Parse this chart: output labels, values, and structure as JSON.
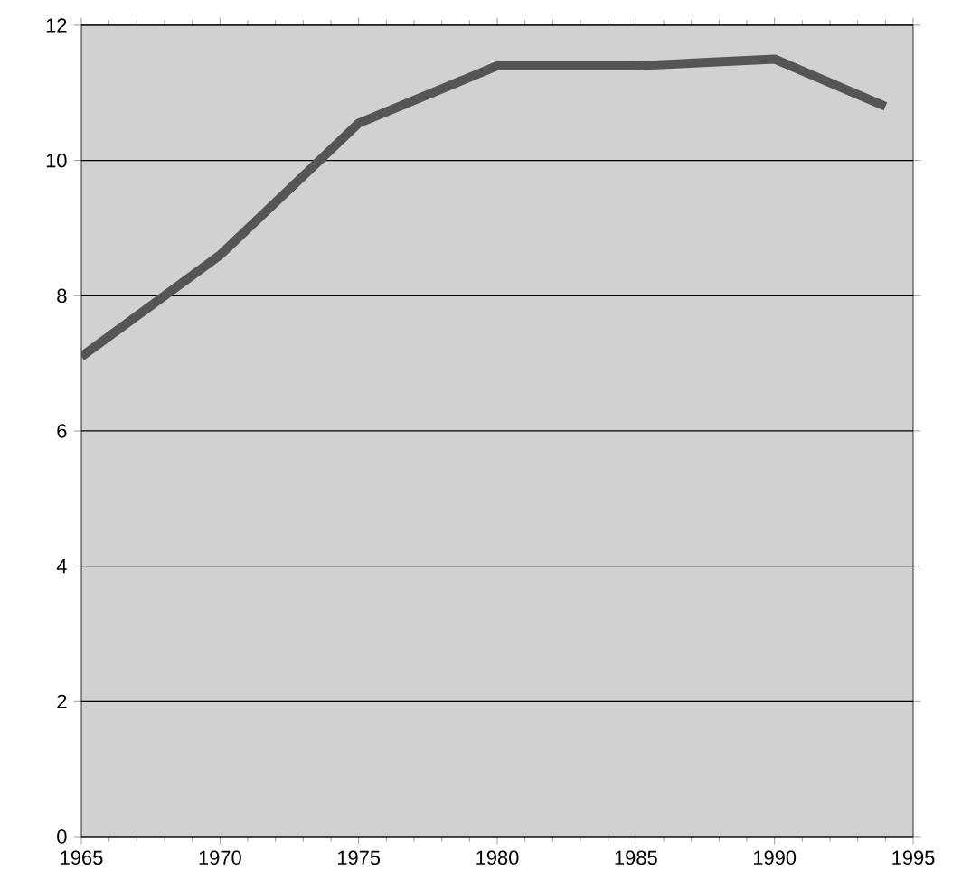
{
  "chart_data": {
    "type": "line",
    "x": [
      1965,
      1970,
      1975,
      1980,
      1985,
      1990,
      1994
    ],
    "series": [
      {
        "color": "#555555",
        "values": [
          7.1,
          8.6,
          10.55,
          11.4,
          11.4,
          11.5,
          10.8
        ]
      }
    ],
    "xlim": [
      1965,
      1995
    ],
    "xticks": [
      1965,
      1970,
      1975,
      1980,
      1985,
      1990,
      1995
    ],
    "ylim": [
      0,
      12
    ],
    "yticks": [
      0,
      2,
      4,
      6,
      8,
      10,
      12
    ],
    "grid": "y",
    "marker": "none",
    "line_style": "solid"
  }
}
